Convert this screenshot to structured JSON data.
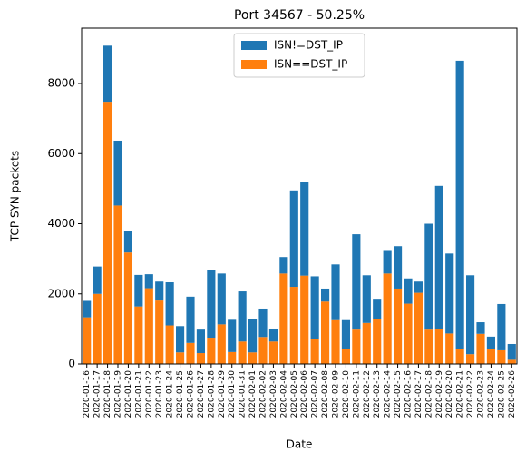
{
  "chart_data": {
    "type": "stacked_bar",
    "title": "Port 34567 - 50.25%",
    "x_label": "Date",
    "y_label": "TCP SYN packets",
    "categories": [
      "2020-01-16",
      "2020-01-17",
      "2020-01-18",
      "2020-01-19",
      "2020-01-20",
      "2020-01-21",
      "2020-01-22",
      "2020-01-23",
      "2020-01-24",
      "2020-01-25",
      "2020-01-26",
      "2020-01-27",
      "2020-01-28",
      "2020-01-29",
      "2020-01-30",
      "2020-01-31",
      "2020-02-01",
      "2020-02-02",
      "2020-02-03",
      "2020-02-04",
      "2020-02-05",
      "2020-02-06",
      "2020-02-07",
      "2020-02-08",
      "2020-02-09",
      "2020-02-10",
      "2020-02-11",
      "2020-02-12",
      "2020-02-13",
      "2020-02-14",
      "2020-02-15",
      "2020-02-16",
      "2020-02-17",
      "2020-02-18",
      "2020-02-19",
      "2020-02-20",
      "2020-02-21",
      "2020-02-22",
      "2020-02-23",
      "2020-02-24",
      "2020-02-25",
      "2020-02-26"
    ],
    "series": [
      {
        "name": "ISN!=DST_IP",
        "color": "#1f77b4",
        "values": [
          470,
          780,
          1600,
          1850,
          620,
          900,
          400,
          540,
          1230,
          750,
          1320,
          670,
          1920,
          1450,
          920,
          1430,
          960,
          810,
          370,
          470,
          2750,
          2680,
          1780,
          370,
          1590,
          830,
          2720,
          1360,
          590,
          670,
          1210,
          720,
          320,
          3020,
          4080,
          2280,
          8230,
          2250,
          330,
          350,
          1320,
          450
        ]
      },
      {
        "name": "ISN==DST_IP",
        "color": "#ff7f0e",
        "values": [
          1330,
          2000,
          7480,
          4520,
          3180,
          1640,
          2160,
          1810,
          1100,
          330,
          600,
          310,
          750,
          1130,
          340,
          640,
          330,
          770,
          640,
          2580,
          2200,
          2520,
          720,
          1780,
          1250,
          420,
          980,
          1170,
          1270,
          2580,
          2150,
          1720,
          2030,
          980,
          1000,
          870,
          420,
          280,
          860,
          430,
          390,
          120
        ]
      }
    ],
    "ylim": [
      0,
      9580
    ],
    "yticks": [
      0,
      2000,
      4000,
      6000,
      8000
    ],
    "legend": "upper center"
  }
}
